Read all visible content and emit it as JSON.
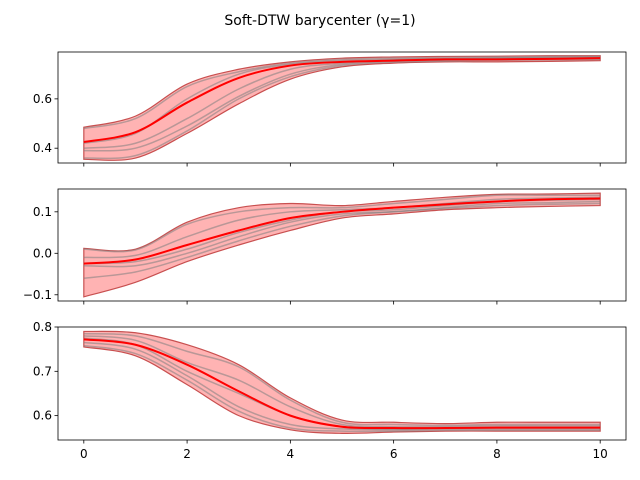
{
  "title": "Soft-DTW barycenter  (γ=1)",
  "colors": {
    "barycenter": "#ff0000",
    "band_fill": "#ffb3b3",
    "band_edge": "#c85050",
    "series_line": "#808080",
    "axis": "#000000"
  },
  "chart_data": [
    {
      "type": "line",
      "xlim": [
        -0.5,
        10.5
      ],
      "ylim": [
        0.34,
        0.79
      ],
      "xticks": [
        0,
        2,
        4,
        6,
        8,
        10
      ],
      "yticks": [
        0.4,
        0.6
      ],
      "ytick_labels": [
        "0.4",
        "0.6"
      ],
      "xtick_labels_visible": false,
      "barycenter": {
        "x": [
          0,
          1,
          2,
          3,
          4,
          5,
          6,
          7,
          8,
          9,
          10
        ],
        "y": [
          0.425,
          0.465,
          0.585,
          0.685,
          0.735,
          0.75,
          0.755,
          0.76,
          0.76,
          0.762,
          0.765
        ]
      },
      "band": {
        "x": [
          0,
          1,
          2,
          3,
          4,
          5,
          6,
          7,
          8,
          9,
          10
        ],
        "lower": [
          0.355,
          0.36,
          0.46,
          0.58,
          0.68,
          0.73,
          0.745,
          0.75,
          0.75,
          0.752,
          0.755
        ],
        "upper": [
          0.485,
          0.53,
          0.66,
          0.72,
          0.75,
          0.765,
          0.77,
          0.772,
          0.773,
          0.775,
          0.775
        ]
      },
      "series": [
        {
          "x": [
            0,
            1,
            2,
            3,
            4,
            5,
            6,
            7,
            8,
            9,
            10
          ],
          "y": [
            0.48,
            0.52,
            0.65,
            0.71,
            0.745,
            0.76,
            0.765,
            0.768,
            0.77,
            0.772,
            0.772
          ]
        },
        {
          "x": [
            0,
            1,
            2,
            3,
            4,
            5,
            6,
            7,
            8,
            9,
            10
          ],
          "y": [
            0.42,
            0.46,
            0.6,
            0.7,
            0.74,
            0.755,
            0.76,
            0.763,
            0.765,
            0.768,
            0.77
          ]
        },
        {
          "x": [
            0,
            1,
            2,
            3,
            4,
            5,
            6,
            7,
            8,
            9,
            10
          ],
          "y": [
            0.4,
            0.42,
            0.52,
            0.64,
            0.72,
            0.745,
            0.758,
            0.762,
            0.765,
            0.765,
            0.767
          ]
        },
        {
          "x": [
            0,
            1,
            2,
            3,
            4,
            5,
            6,
            7,
            8,
            9,
            10
          ],
          "y": [
            0.39,
            0.4,
            0.49,
            0.61,
            0.7,
            0.74,
            0.752,
            0.757,
            0.76,
            0.762,
            0.762
          ]
        },
        {
          "x": [
            0,
            1,
            2,
            3,
            4,
            5,
            6,
            7,
            8,
            9,
            10
          ],
          "y": [
            0.36,
            0.37,
            0.47,
            0.6,
            0.69,
            0.735,
            0.748,
            0.753,
            0.756,
            0.758,
            0.76
          ]
        }
      ]
    },
    {
      "type": "line",
      "xlim": [
        -0.5,
        10.5
      ],
      "ylim": [
        -0.115,
        0.155
      ],
      "xticks": [
        0,
        2,
        4,
        6,
        8,
        10
      ],
      "yticks": [
        -0.1,
        0.0,
        0.1
      ],
      "ytick_labels": [
        "−0.1",
        "0.0",
        "0.1"
      ],
      "xtick_labels_visible": false,
      "barycenter": {
        "x": [
          0,
          1,
          2,
          3,
          4,
          5,
          6,
          7,
          8,
          9,
          10
        ],
        "y": [
          -0.025,
          -0.015,
          0.02,
          0.055,
          0.085,
          0.1,
          0.11,
          0.118,
          0.125,
          0.13,
          0.132
        ]
      },
      "band": {
        "x": [
          0,
          1,
          2,
          3,
          4,
          5,
          6,
          7,
          8,
          9,
          10
        ],
        "lower": [
          -0.105,
          -0.07,
          -0.02,
          0.02,
          0.055,
          0.085,
          0.095,
          0.105,
          0.11,
          0.113,
          0.115
        ],
        "upper": [
          0.012,
          0.01,
          0.075,
          0.11,
          0.12,
          0.115,
          0.125,
          0.135,
          0.142,
          0.143,
          0.145
        ]
      },
      "series": [
        {
          "x": [
            0,
            1,
            2,
            3,
            4,
            5,
            6,
            7,
            8,
            9,
            10
          ],
          "y": [
            0.01,
            0.008,
            0.07,
            0.1,
            0.11,
            0.11,
            0.12,
            0.13,
            0.14,
            0.14,
            0.14
          ]
        },
        {
          "x": [
            0,
            1,
            2,
            3,
            4,
            5,
            6,
            7,
            8,
            9,
            10
          ],
          "y": [
            -0.01,
            -0.005,
            0.04,
            0.08,
            0.1,
            0.105,
            0.11,
            0.12,
            0.13,
            0.133,
            0.135
          ]
        },
        {
          "x": [
            0,
            1,
            2,
            3,
            4,
            5,
            6,
            7,
            8,
            9,
            10
          ],
          "y": [
            -0.025,
            -0.02,
            0.01,
            0.05,
            0.08,
            0.1,
            0.105,
            0.115,
            0.125,
            0.128,
            0.13
          ]
        },
        {
          "x": [
            0,
            1,
            2,
            3,
            4,
            5,
            6,
            7,
            8,
            9,
            10
          ],
          "y": [
            -0.03,
            -0.03,
            0.0,
            0.04,
            0.075,
            0.095,
            0.1,
            0.11,
            0.12,
            0.122,
            0.125
          ]
        },
        {
          "x": [
            0,
            1,
            2,
            3,
            4,
            5,
            6,
            7,
            8,
            9,
            10
          ],
          "y": [
            -0.06,
            -0.045,
            -0.01,
            0.03,
            0.065,
            0.09,
            0.1,
            0.108,
            0.115,
            0.118,
            0.12
          ]
        }
      ]
    },
    {
      "type": "line",
      "xlim": [
        -0.5,
        10.5
      ],
      "ylim": [
        0.545,
        0.8
      ],
      "xticks": [
        0,
        2,
        4,
        6,
        8,
        10
      ],
      "xtick_labels": [
        "0",
        "2",
        "4",
        "6",
        "8",
        "10"
      ],
      "xtick_labels_visible": true,
      "yticks": [
        0.6,
        0.7,
        0.8
      ],
      "ytick_labels": [
        "0.6",
        "0.7",
        "0.8"
      ],
      "barycenter": {
        "x": [
          0,
          1,
          2,
          3,
          4,
          5,
          6,
          7,
          8,
          9,
          10
        ],
        "y": [
          0.772,
          0.76,
          0.715,
          0.655,
          0.6,
          0.575,
          0.572,
          0.572,
          0.573,
          0.573,
          0.573
        ]
      },
      "band": {
        "x": [
          0,
          1,
          2,
          3,
          4,
          5,
          6,
          7,
          8,
          9,
          10
        ],
        "lower": [
          0.755,
          0.735,
          0.67,
          0.6,
          0.568,
          0.56,
          0.563,
          0.565,
          0.565,
          0.565,
          0.565
        ],
        "upper": [
          0.79,
          0.787,
          0.76,
          0.715,
          0.64,
          0.59,
          0.585,
          0.582,
          0.585,
          0.585,
          0.585
        ]
      },
      "series": [
        {
          "x": [
            0,
            1,
            2,
            3,
            4,
            5,
            6,
            7,
            8,
            9,
            10
          ],
          "y": [
            0.785,
            0.78,
            0.745,
            0.71,
            0.635,
            0.585,
            0.58,
            0.578,
            0.58,
            0.58,
            0.58
          ]
        },
        {
          "x": [
            0,
            1,
            2,
            3,
            4,
            5,
            6,
            7,
            8,
            9,
            10
          ],
          "y": [
            0.78,
            0.77,
            0.72,
            0.68,
            0.62,
            0.58,
            0.575,
            0.575,
            0.577,
            0.577,
            0.577
          ]
        },
        {
          "x": [
            0,
            1,
            2,
            3,
            4,
            5,
            6,
            7,
            8,
            9,
            10
          ],
          "y": [
            0.775,
            0.76,
            0.7,
            0.65,
            0.6,
            0.575,
            0.57,
            0.572,
            0.573,
            0.573,
            0.573
          ]
        },
        {
          "x": [
            0,
            1,
            2,
            3,
            4,
            5,
            6,
            7,
            8,
            9,
            10
          ],
          "y": [
            0.765,
            0.75,
            0.69,
            0.62,
            0.58,
            0.57,
            0.568,
            0.57,
            0.57,
            0.57,
            0.57
          ]
        },
        {
          "x": [
            0,
            1,
            2,
            3,
            4,
            5,
            6,
            7,
            8,
            9,
            10
          ],
          "y": [
            0.758,
            0.74,
            0.68,
            0.61,
            0.572,
            0.565,
            0.565,
            0.567,
            0.567,
            0.567,
            0.567
          ]
        }
      ]
    }
  ]
}
